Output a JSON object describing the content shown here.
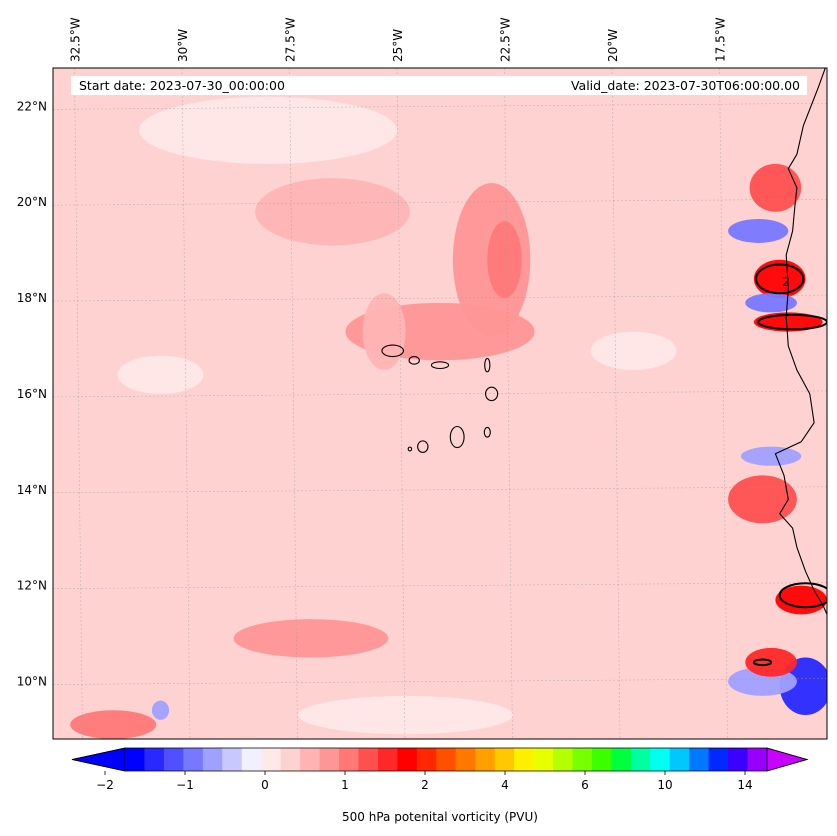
{
  "header": {
    "start_date": "Start date: 2023-07-30_00:00:00",
    "valid_date": "Valid_date: 2023-07-30T06:00:00.00"
  },
  "map": {
    "lon_min": -33.0,
    "lon_max": -15.0,
    "lat_min": 8.8,
    "lat_max": 22.8,
    "lon_labels": [
      {
        "lon": -32.5,
        "text": "32.5°W"
      },
      {
        "lon": -30.0,
        "text": "30°W"
      },
      {
        "lon": -27.5,
        "text": "27.5°W"
      },
      {
        "lon": -25.0,
        "text": "25°W"
      },
      {
        "lon": -22.5,
        "text": "22.5°W"
      },
      {
        "lon": -20.0,
        "text": "20°W"
      },
      {
        "lon": -17.5,
        "text": "17.5°W"
      }
    ],
    "lat_labels": [
      {
        "lat": 22,
        "text": "22°N"
      },
      {
        "lat": 20,
        "text": "20°N"
      },
      {
        "lat": 18,
        "text": "18°N"
      },
      {
        "lat": 16,
        "text": "16°N"
      },
      {
        "lat": 14,
        "text": "14°N"
      },
      {
        "lat": 12,
        "text": "12°N"
      },
      {
        "lat": 10,
        "text": "10°N"
      }
    ],
    "contour_label": "2",
    "background_color": "#ffd2d2",
    "coast_color": "#000000"
  },
  "colorbar": {
    "label": "500 hPa potenital vorticity (PVU)",
    "colors": [
      "#0000ff",
      "#2828ff",
      "#5050ff",
      "#7878ff",
      "#a0a0ff",
      "#c8c8ff",
      "#f0f0ff",
      "#ffe8e8",
      "#ffd2d2",
      "#ffb4b4",
      "#ff9696",
      "#ff7878",
      "#ff5050",
      "#ff2828",
      "#ff0000",
      "#ff2800",
      "#ff5000",
      "#ff7800",
      "#ffa000",
      "#ffc800",
      "#fff000",
      "#e8ff00",
      "#b4ff00",
      "#78ff00",
      "#3cff00",
      "#00ff3c",
      "#00ffa0",
      "#00fff0",
      "#00c8ff",
      "#0078ff",
      "#0028ff",
      "#3c00ff",
      "#9600ff"
    ],
    "under_color": "#0000ff",
    "over_color": "#c800ff",
    "tick_labels": [
      {
        "index": 1.25,
        "text": "−2"
      },
      {
        "index": 5.25,
        "text": "−1"
      },
      {
        "index": 9.25,
        "text": "0"
      },
      {
        "index": 13.25,
        "text": "1"
      },
      {
        "index": 17.25,
        "text": "2"
      },
      {
        "index": 21.25,
        "text": "4"
      },
      {
        "index": 25.25,
        "text": "6"
      },
      {
        "index": 29.25,
        "text": "10"
      },
      {
        "index": 33.25,
        "text": "14"
      }
    ]
  },
  "features": [
    {
      "name": "blob",
      "lon": -24.0,
      "lat": 17.3,
      "rx": 2.2,
      "ry": 0.6,
      "color": "#ff9696"
    },
    {
      "name": "blob",
      "lon": -22.8,
      "lat": 18.8,
      "rx": 0.9,
      "ry": 1.6,
      "color": "#ff9696"
    },
    {
      "name": "blob",
      "lon": -22.5,
      "lat": 18.8,
      "rx": 0.4,
      "ry": 0.8,
      "color": "#ff7878"
    },
    {
      "name": "blob",
      "lon": -25.3,
      "lat": 17.3,
      "rx": 0.5,
      "ry": 0.8,
      "color": "#ffb4b4"
    },
    {
      "name": "blob",
      "lon": -26.5,
      "lat": 19.8,
      "rx": 1.8,
      "ry": 0.7,
      "color": "#ffb4b4"
    },
    {
      "name": "blob",
      "lon": -27.0,
      "lat": 10.9,
      "rx": 1.8,
      "ry": 0.4,
      "color": "#ff9696"
    },
    {
      "name": "blob",
      "lon": -31.6,
      "lat": 9.1,
      "rx": 1.0,
      "ry": 0.3,
      "color": "#ff7878"
    },
    {
      "name": "blob",
      "lon": -28.0,
      "lat": 21.5,
      "rx": 3.0,
      "ry": 0.7,
      "color": "#ffe8e8"
    },
    {
      "name": "blob",
      "lon": -30.5,
      "lat": 16.4,
      "rx": 1.0,
      "ry": 0.4,
      "color": "#ffe8e8"
    },
    {
      "name": "blob",
      "lon": -19.5,
      "lat": 16.9,
      "rx": 1.0,
      "ry": 0.4,
      "color": "#ffe8e8"
    },
    {
      "name": "blob",
      "lon": -24.8,
      "lat": 9.3,
      "rx": 2.5,
      "ry": 0.4,
      "color": "#ffe8e8"
    },
    {
      "name": "blob",
      "lon": -16.1,
      "lat": 18.4,
      "rx": 0.6,
      "ry": 0.4,
      "color": "#ff0000"
    },
    {
      "name": "blob",
      "lon": -15.9,
      "lat": 17.5,
      "rx": 0.8,
      "ry": 0.2,
      "color": "#ff0000"
    },
    {
      "name": "blob",
      "lon": -16.6,
      "lat": 19.4,
      "rx": 0.7,
      "ry": 0.25,
      "color": "#7878ff"
    },
    {
      "name": "blob",
      "lon": -16.3,
      "lat": 17.9,
      "rx": 0.6,
      "ry": 0.2,
      "color": "#7878ff"
    },
    {
      "name": "blob",
      "lon": -16.2,
      "lat": 20.3,
      "rx": 0.6,
      "ry": 0.5,
      "color": "#ff5050"
    },
    {
      "name": "blob",
      "lon": -16.5,
      "lat": 13.8,
      "rx": 0.8,
      "ry": 0.5,
      "color": "#ff5050"
    },
    {
      "name": "blob",
      "lon": -16.3,
      "lat": 14.7,
      "rx": 0.7,
      "ry": 0.2,
      "color": "#a0a0ff"
    },
    {
      "name": "blob",
      "lon": -15.6,
      "lat": 11.7,
      "rx": 0.6,
      "ry": 0.3,
      "color": "#ff0000"
    },
    {
      "name": "blob",
      "lon": -15.5,
      "lat": 9.9,
      "rx": 0.6,
      "ry": 0.6,
      "color": "#2828ff"
    },
    {
      "name": "blob",
      "lon": -16.5,
      "lat": 10.0,
      "rx": 0.8,
      "ry": 0.3,
      "color": "#a0a0ff"
    },
    {
      "name": "blob",
      "lon": -16.3,
      "lat": 10.4,
      "rx": 0.6,
      "ry": 0.3,
      "color": "#ff2828"
    },
    {
      "name": "blob",
      "lon": -30.5,
      "lat": 9.4,
      "rx": 0.2,
      "ry": 0.2,
      "color": "#a0a0ff"
    }
  ],
  "islands": [
    {
      "lon": -25.1,
      "lat": 16.9,
      "rx": 0.25,
      "ry": 0.12
    },
    {
      "lon": -24.6,
      "lat": 16.7,
      "rx": 0.12,
      "ry": 0.08
    },
    {
      "lon": -24.0,
      "lat": 16.6,
      "rx": 0.2,
      "ry": 0.07
    },
    {
      "lon": -22.9,
      "lat": 16.6,
      "rx": 0.06,
      "ry": 0.14
    },
    {
      "lon": -22.8,
      "lat": 16.0,
      "rx": 0.14,
      "ry": 0.14
    },
    {
      "lon": -23.6,
      "lat": 15.1,
      "rx": 0.16,
      "ry": 0.22
    },
    {
      "lon": -22.9,
      "lat": 15.2,
      "rx": 0.07,
      "ry": 0.1
    },
    {
      "lon": -24.4,
      "lat": 14.9,
      "rx": 0.12,
      "ry": 0.12
    },
    {
      "lon": -24.7,
      "lat": 14.85,
      "rx": 0.04,
      "ry": 0.04
    }
  ],
  "coastline": [
    [
      -15.0,
      22.9
    ],
    [
      -15.2,
      22.4
    ],
    [
      -15.55,
      21.6
    ],
    [
      -15.7,
      21.0
    ],
    [
      -15.9,
      20.7
    ],
    [
      -15.7,
      20.3
    ],
    [
      -15.75,
      19.9
    ],
    [
      -15.8,
      19.4
    ],
    [
      -15.95,
      18.9
    ],
    [
      -15.9,
      18.2
    ],
    [
      -15.95,
      17.6
    ],
    [
      -15.9,
      17.0
    ],
    [
      -15.7,
      16.5
    ],
    [
      -15.4,
      16.0
    ],
    [
      -15.3,
      15.4
    ],
    [
      -15.6,
      15.0
    ],
    [
      -16.2,
      14.75
    ],
    [
      -16.0,
      14.3
    ],
    [
      -15.9,
      13.8
    ],
    [
      -16.1,
      13.5
    ],
    [
      -15.8,
      13.2
    ],
    [
      -15.7,
      12.8
    ],
    [
      -15.5,
      12.3
    ],
    [
      -15.3,
      11.9
    ],
    [
      -15.1,
      11.6
    ],
    [
      -15.0,
      11.4
    ]
  ]
}
